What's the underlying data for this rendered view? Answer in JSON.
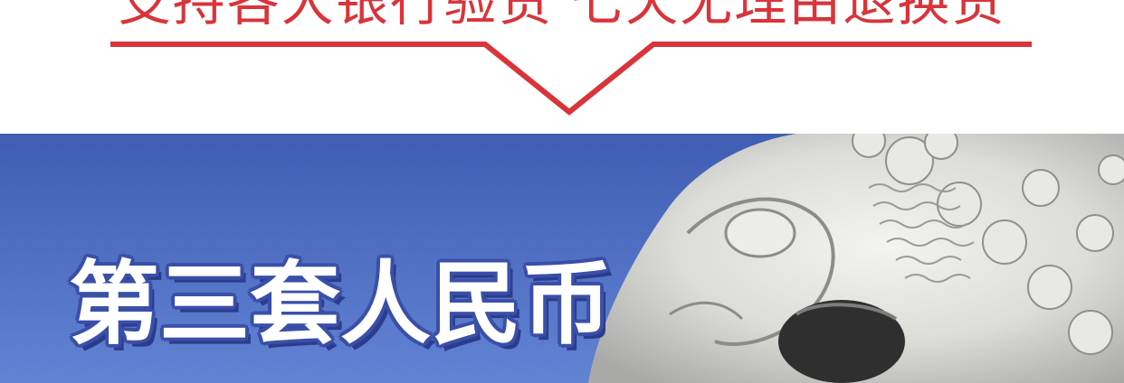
{
  "promo": {
    "headline": "支持各大银行验货  七天无理由退换货",
    "accent_color": "#d9343a"
  },
  "hero": {
    "title": "第三套人民币",
    "image_subject": "stone-lion-statue",
    "sky_color": "#4d6fc6"
  }
}
